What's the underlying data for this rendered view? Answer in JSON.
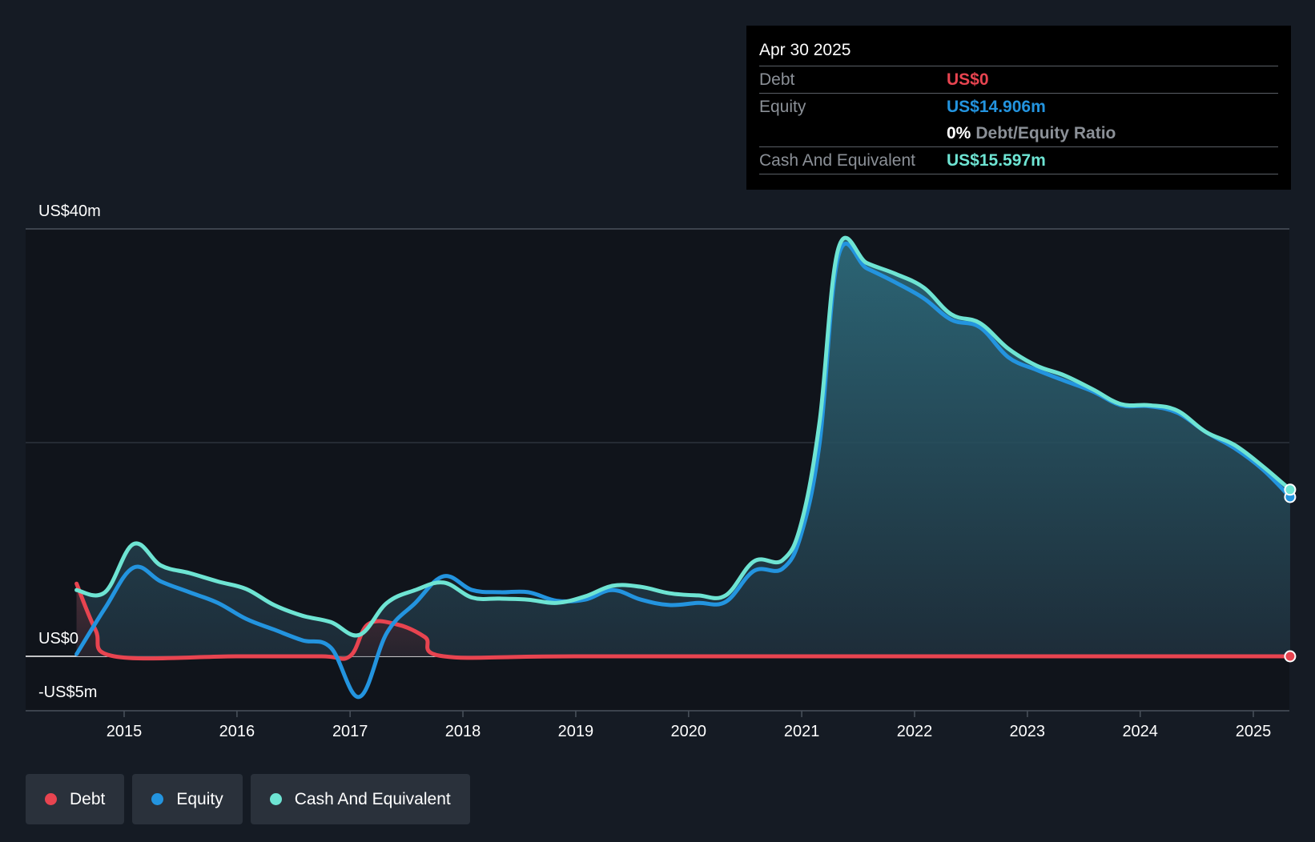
{
  "tooltip": {
    "date": "Apr 30 2025",
    "debt_label": "Debt",
    "debt_value": "US$0",
    "equity_label": "Equity",
    "equity_value": "US$14.906m",
    "ratio_value": "0%",
    "ratio_label": "Debt/Equity Ratio",
    "cash_label": "Cash And Equivalent",
    "cash_value": "US$15.597m"
  },
  "legend": {
    "debt": "Debt",
    "equity": "Equity",
    "cash": "Cash And Equivalent"
  },
  "colors": {
    "background": "#151b24",
    "debt": "#e84450",
    "equity": "#2394df",
    "cash": "#6ee4d3"
  },
  "chart_data": {
    "type": "line",
    "y_unit": "US$m",
    "ylim": [
      -5,
      40
    ],
    "xlim": [
      "2014-01-01",
      "2025-04-30"
    ],
    "y_tick_labels": [
      {
        "value": 40,
        "label": "US$40m"
      },
      {
        "value": 0,
        "label": "US$0"
      },
      {
        "value": -5,
        "label": "-US$5m"
      }
    ],
    "x_ticks": [
      "2015",
      "2016",
      "2017",
      "2018",
      "2019",
      "2020",
      "2021",
      "2022",
      "2023",
      "2024",
      "2025"
    ],
    "series": [
      {
        "name": "Debt",
        "points": [
          [
            "2014-07-31",
            6.8
          ],
          [
            "2014-09-30",
            2.5
          ],
          [
            "2014-11-30",
            0
          ],
          [
            "2015-12-31",
            0
          ],
          [
            "2016-09-30",
            0
          ],
          [
            "2016-12-31",
            0
          ],
          [
            "2017-02-28",
            3.0
          ],
          [
            "2017-05-31",
            3.0
          ],
          [
            "2017-08-31",
            1.8
          ],
          [
            "2017-10-31",
            0
          ],
          [
            "2018-12-31",
            0
          ],
          [
            "2021-12-31",
            0
          ],
          [
            "2025-04-30",
            0
          ]
        ]
      },
      {
        "name": "Equity",
        "points": [
          [
            "2014-07-31",
            0.2
          ],
          [
            "2014-10-31",
            4.5
          ],
          [
            "2015-01-31",
            8.3
          ],
          [
            "2015-04-30",
            7.0
          ],
          [
            "2015-07-31",
            6.0
          ],
          [
            "2015-10-31",
            5.0
          ],
          [
            "2016-01-31",
            3.5
          ],
          [
            "2016-04-30",
            2.5
          ],
          [
            "2016-07-31",
            1.5
          ],
          [
            "2016-10-31",
            0.8
          ],
          [
            "2017-01-31",
            -3.8
          ],
          [
            "2017-04-30",
            2.2
          ],
          [
            "2017-07-31",
            5.0
          ],
          [
            "2017-10-31",
            7.5
          ],
          [
            "2018-01-31",
            6.2
          ],
          [
            "2018-04-30",
            6.0
          ],
          [
            "2018-07-31",
            6.0
          ],
          [
            "2018-10-31",
            5.2
          ],
          [
            "2019-01-31",
            5.3
          ],
          [
            "2019-04-30",
            6.2
          ],
          [
            "2019-07-31",
            5.3
          ],
          [
            "2019-10-31",
            4.8
          ],
          [
            "2020-01-31",
            5.0
          ],
          [
            "2020-04-30",
            5.1
          ],
          [
            "2020-07-31",
            8.0
          ],
          [
            "2020-10-31",
            8.2
          ],
          [
            "2020-12-31",
            11.5
          ],
          [
            "2021-02-28",
            20.0
          ],
          [
            "2021-04-30",
            37.5
          ],
          [
            "2021-07-31",
            36.3
          ],
          [
            "2021-10-31",
            35.0
          ],
          [
            "2022-01-31",
            33.5
          ],
          [
            "2022-04-30",
            31.5
          ],
          [
            "2022-07-31",
            30.8
          ],
          [
            "2022-10-31",
            28.0
          ],
          [
            "2023-01-31",
            26.8
          ],
          [
            "2023-04-30",
            25.8
          ],
          [
            "2023-07-31",
            24.8
          ],
          [
            "2023-10-31",
            23.5
          ],
          [
            "2024-01-31",
            23.4
          ],
          [
            "2024-04-30",
            22.8
          ],
          [
            "2024-07-31",
            21.0
          ],
          [
            "2024-10-31",
            19.5
          ],
          [
            "2025-01-31",
            17.5
          ],
          [
            "2025-04-30",
            14.906
          ]
        ]
      },
      {
        "name": "Cash And Equivalent",
        "points": [
          [
            "2014-07-31",
            6.2
          ],
          [
            "2014-10-31",
            6.0
          ],
          [
            "2015-01-31",
            10.5
          ],
          [
            "2015-04-30",
            8.5
          ],
          [
            "2015-07-31",
            7.8
          ],
          [
            "2015-10-31",
            7.0
          ],
          [
            "2016-01-31",
            6.3
          ],
          [
            "2016-04-30",
            4.8
          ],
          [
            "2016-07-31",
            3.8
          ],
          [
            "2016-10-31",
            3.2
          ],
          [
            "2017-01-31",
            2.0
          ],
          [
            "2017-04-30",
            5.0
          ],
          [
            "2017-07-31",
            6.2
          ],
          [
            "2017-10-31",
            6.9
          ],
          [
            "2018-01-31",
            5.5
          ],
          [
            "2018-04-30",
            5.4
          ],
          [
            "2018-07-31",
            5.3
          ],
          [
            "2018-10-31",
            5.0
          ],
          [
            "2019-01-31",
            5.6
          ],
          [
            "2019-04-30",
            6.6
          ],
          [
            "2019-07-31",
            6.5
          ],
          [
            "2019-10-31",
            5.9
          ],
          [
            "2020-01-31",
            5.7
          ],
          [
            "2020-04-30",
            5.7
          ],
          [
            "2020-07-31",
            8.9
          ],
          [
            "2020-10-31",
            9.0
          ],
          [
            "2020-12-31",
            12.5
          ],
          [
            "2021-02-28",
            22.0
          ],
          [
            "2021-04-30",
            38.2
          ],
          [
            "2021-07-31",
            36.8
          ],
          [
            "2021-10-31",
            35.8
          ],
          [
            "2022-01-31",
            34.5
          ],
          [
            "2022-04-30",
            32.0
          ],
          [
            "2022-07-31",
            31.2
          ],
          [
            "2022-10-31",
            28.8
          ],
          [
            "2023-01-31",
            27.2
          ],
          [
            "2023-04-30",
            26.3
          ],
          [
            "2023-07-31",
            25.0
          ],
          [
            "2023-10-31",
            23.6
          ],
          [
            "2024-01-31",
            23.5
          ],
          [
            "2024-04-30",
            23.0
          ],
          [
            "2024-07-31",
            21.0
          ],
          [
            "2024-10-31",
            19.8
          ],
          [
            "2025-01-31",
            17.8
          ],
          [
            "2025-04-30",
            15.597
          ]
        ]
      }
    ]
  }
}
